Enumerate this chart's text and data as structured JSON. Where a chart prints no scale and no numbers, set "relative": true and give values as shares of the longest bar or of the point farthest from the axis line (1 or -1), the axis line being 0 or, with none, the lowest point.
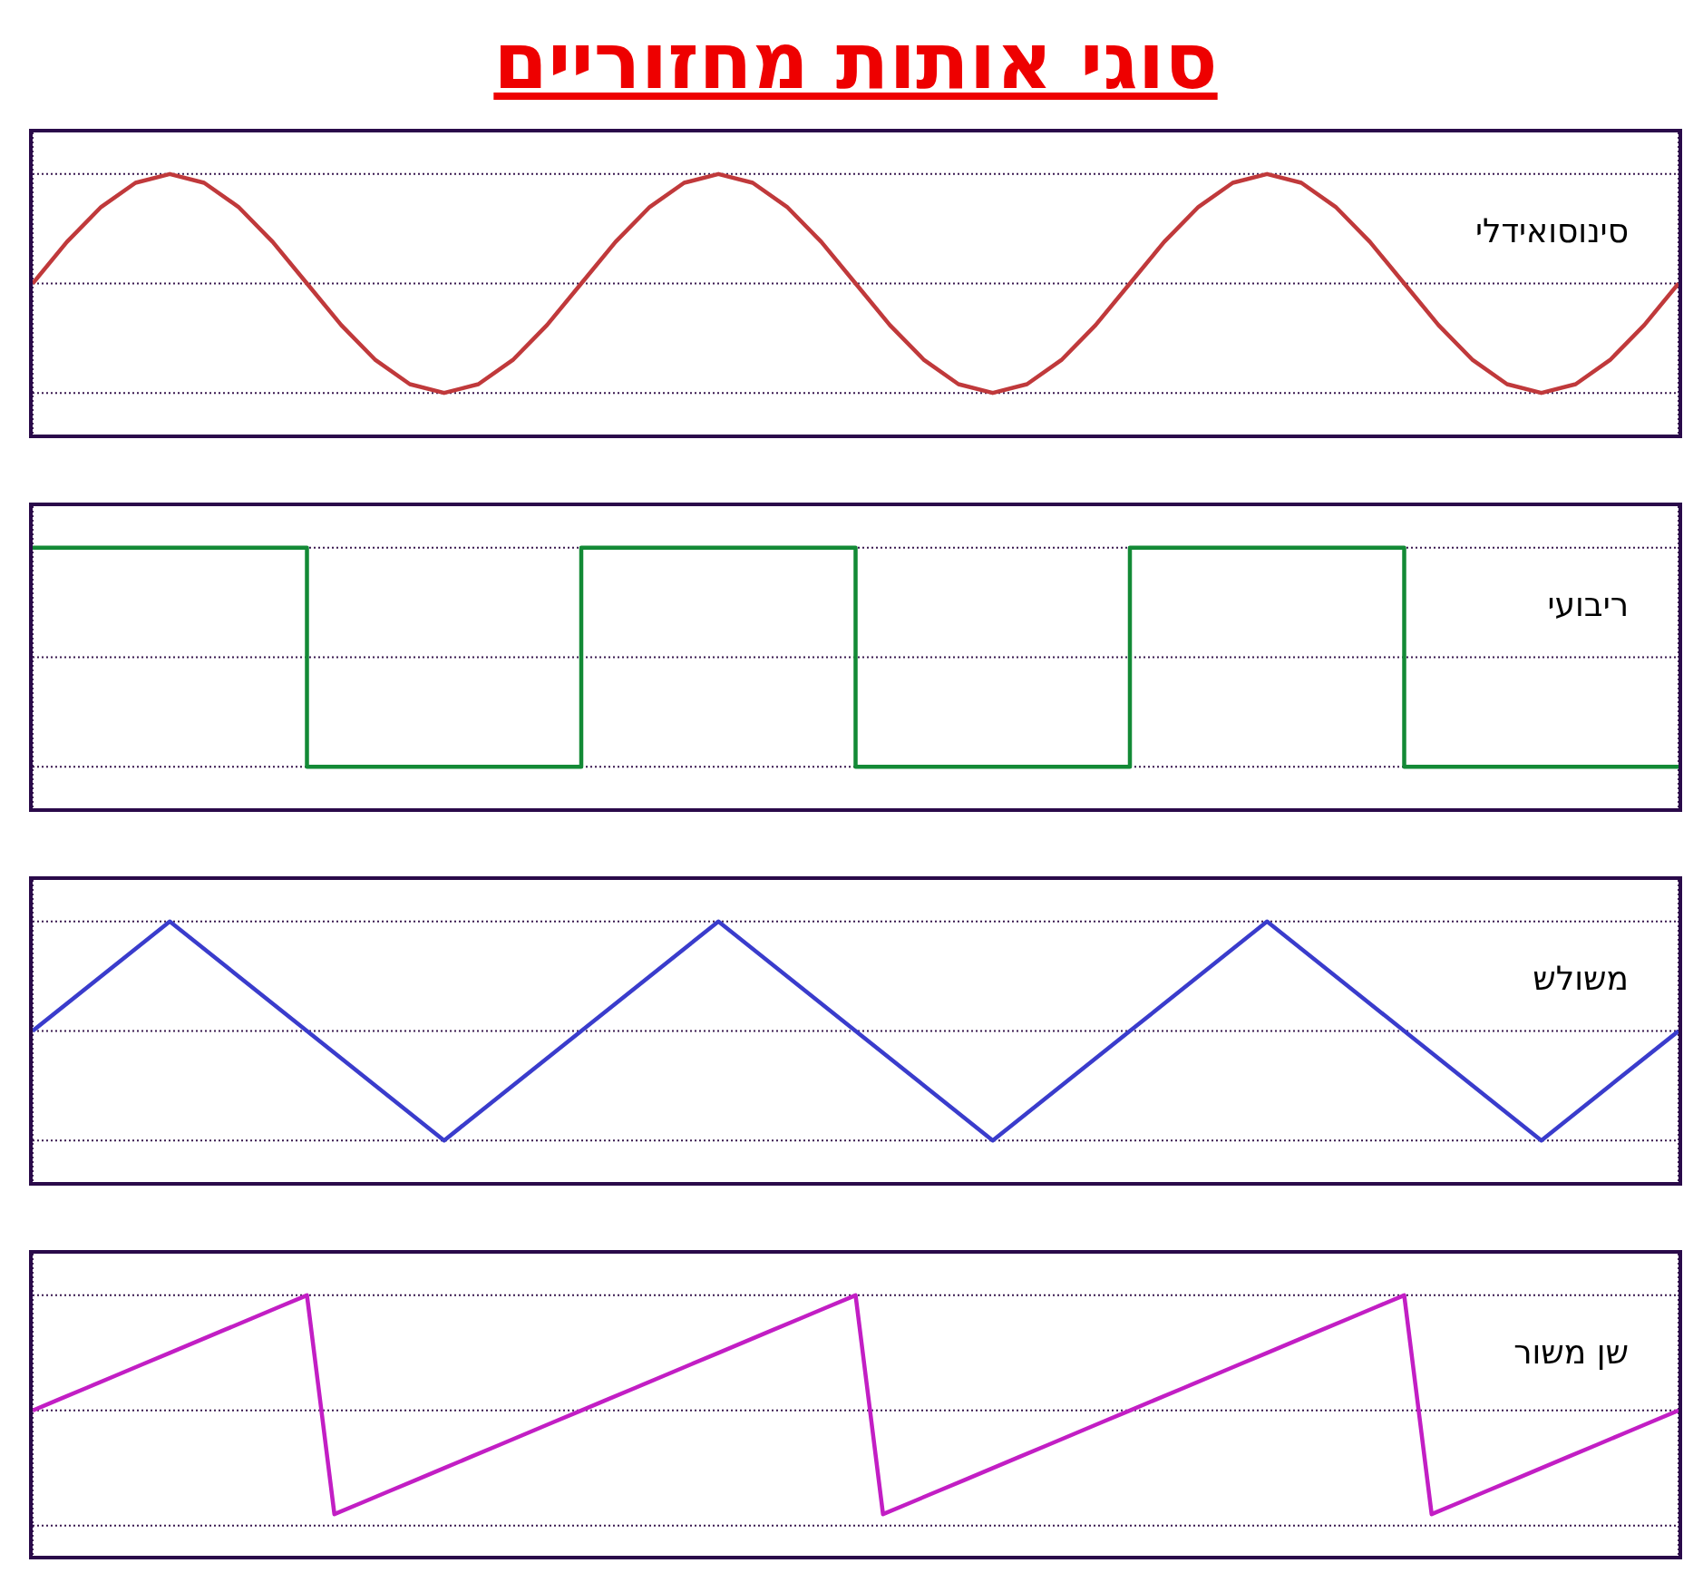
{
  "chart_data": [
    {
      "type": "line",
      "title": "סוגי אותות מחזוריים",
      "relative": true,
      "grid": "x",
      "marker": "none",
      "ref_lines": [
        {
          "axis": "y",
          "value": 1,
          "color": "#3a1a50",
          "line_style": "dotted"
        },
        {
          "axis": "y",
          "value": 0.5,
          "color": "#3a1a50",
          "line_style": "dotted"
        },
        {
          "axis": "y",
          "value": 0,
          "color": "#3a1a50",
          "line_style": "dotted"
        }
      ],
      "categories": [
        null,
        null,
        null,
        null,
        null,
        null,
        null,
        null,
        null,
        null,
        null,
        null,
        null,
        null,
        null,
        null,
        null,
        null,
        null,
        null,
        null,
        null,
        null,
        null,
        null,
        null,
        null,
        null,
        null,
        null,
        null,
        null,
        null,
        null,
        null,
        null,
        null,
        null,
        null,
        null,
        null,
        null,
        null,
        null,
        null,
        null,
        null,
        null,
        null
      ],
      "series": [
        {
          "name": "סינוסואידלי",
          "color": "#c0393b",
          "values": [
            0.5,
            0.69,
            0.85,
            0.96,
            1,
            0.96,
            0.85,
            0.69,
            0.5,
            0.31,
            0.15,
            0.04,
            0,
            0.04,
            0.15,
            0.31,
            0.5,
            0.69,
            0.85,
            0.96,
            1,
            0.96,
            0.85,
            0.69,
            0.5,
            0.31,
            0.15,
            0.04,
            0,
            0.04,
            0.15,
            0.31,
            0.5,
            0.69,
            0.85,
            0.96,
            1,
            0.96,
            0.85,
            0.69,
            0.5,
            0.31,
            0.15,
            0.04,
            0,
            0.04,
            0.15,
            0.31,
            0.5
          ]
        }
      ]
    },
    {
      "type": "step",
      "relative": true,
      "grid": "x",
      "marker": "none",
      "ref_lines": [
        {
          "axis": "y",
          "value": 1,
          "color": "#3a1a50",
          "line_style": "dotted"
        },
        {
          "axis": "y",
          "value": 0.5,
          "color": "#3a1a50",
          "line_style": "dotted"
        },
        {
          "axis": "y",
          "value": 0,
          "color": "#3a1a50",
          "line_style": "dotted"
        }
      ],
      "categories": [
        null,
        null,
        null,
        null,
        null,
        null,
        null
      ],
      "series": [
        {
          "name": "ריבועי",
          "color": "#138a36",
          "values": [
            1,
            0,
            1,
            0,
            1,
            0,
            0
          ]
        }
      ]
    },
    {
      "type": "line",
      "relative": true,
      "grid": "x",
      "marker": "none",
      "ref_lines": [
        {
          "axis": "y",
          "value": 1,
          "color": "#3a1a50",
          "line_style": "dotted"
        },
        {
          "axis": "y",
          "value": 0.5,
          "color": "#3a1a50",
          "line_style": "dotted"
        },
        {
          "axis": "y",
          "value": 0,
          "color": "#3a1a50",
          "line_style": "dotted"
        }
      ],
      "categories": [
        null,
        null,
        null,
        null,
        null,
        null,
        null,
        null,
        null,
        null,
        null,
        null,
        null
      ],
      "series": [
        {
          "name": "משולש",
          "color": "#3a3ccc",
          "values": [
            0.5,
            1,
            0.5,
            0,
            0.5,
            1,
            0.5,
            0,
            0.5,
            1,
            0.5,
            0,
            0.5
          ]
        }
      ]
    },
    {
      "type": "line",
      "relative": true,
      "grid": "x",
      "marker": "none",
      "ref_lines": [
        {
          "axis": "y",
          "value": 1,
          "color": "#3a1a50",
          "line_style": "dotted"
        },
        {
          "axis": "y",
          "value": 0.5,
          "color": "#3a1a50",
          "line_style": "dotted"
        },
        {
          "axis": "y",
          "value": 0,
          "color": "#3a1a50",
          "line_style": "dotted"
        }
      ],
      "categories": [
        null,
        null,
        null,
        null,
        null,
        null,
        null,
        null,
        null,
        null,
        null,
        null,
        null,
        null,
        null,
        null,
        null,
        null,
        null,
        null,
        null,
        null,
        null,
        null,
        null,
        null,
        null,
        null,
        null,
        null,
        null,
        null,
        null,
        null,
        null,
        null,
        null,
        null,
        null,
        null,
        null,
        null,
        null,
        null,
        null,
        null,
        null,
        null,
        null,
        null,
        null,
        null,
        null,
        null,
        null,
        null,
        null,
        null,
        null,
        null,
        null
      ],
      "series": [
        {
          "name": "שן משור",
          "color": "#c21ec4",
          "values": [
            0.5,
            0.55,
            0.6,
            0.65,
            0.7,
            0.75,
            0.8,
            0.85,
            0.9,
            0.95,
            1,
            0.05,
            0.1,
            0.15,
            0.2,
            0.25,
            0.3,
            0.35,
            0.4,
            0.45,
            0.5,
            0.55,
            0.6,
            0.65,
            0.7,
            0.75,
            0.8,
            0.85,
            0.9,
            0.95,
            1,
            0.05,
            0.1,
            0.15,
            0.2,
            0.25,
            0.3,
            0.35,
            0.4,
            0.45,
            0.5,
            0.55,
            0.6,
            0.65,
            0.7,
            0.75,
            0.8,
            0.85,
            0.9,
            0.95,
            1,
            0.05,
            0.1,
            0.15,
            0.2,
            0.25,
            0.3,
            0.35,
            0.4,
            0.45,
            0.5
          ]
        }
      ]
    }
  ]
}
